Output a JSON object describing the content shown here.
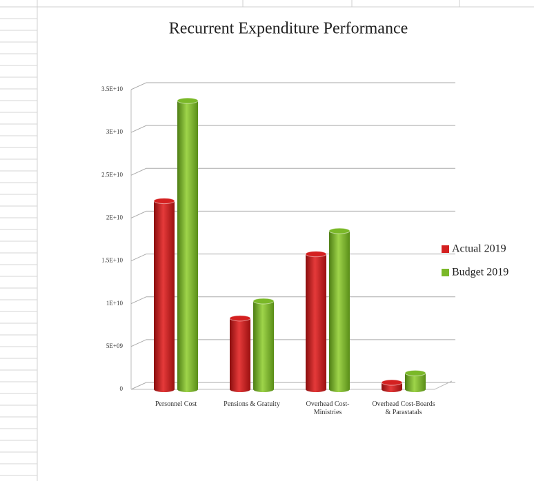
{
  "chart_data": {
    "type": "bar",
    "title": "Recurrent Expenditure Performance",
    "categories": [
      "Personnel Cost",
      "Pensions & Gratuity",
      "Overhead Cost-Ministries",
      "Overhead Cost-Boards & Parastatals"
    ],
    "series": [
      {
        "name": "Actual 2019",
        "color": "#d42020",
        "values": [
          22000000000,
          8300000000,
          15800000000,
          800000000
        ]
      },
      {
        "name": "Budget 2019",
        "color": "#7ab828",
        "values": [
          33700000000,
          10300000000,
          18500000000,
          1900000000
        ]
      }
    ],
    "ylim": [
      0,
      35000000000
    ],
    "yticks": [
      0,
      {
        "value": 5000000000,
        "label": "5E+09"
      },
      {
        "value": 10000000000,
        "label": "1E+10"
      },
      {
        "value": 15000000000,
        "label": "1.5E+10"
      },
      {
        "value": 20000000000,
        "label": "2E+10"
      },
      {
        "value": 25000000000,
        "label": "2.5E+10"
      },
      {
        "value": 30000000000,
        "label": "3E+10"
      },
      {
        "value": 35000000000,
        "label": "3.5E+10"
      }
    ],
    "grid": true,
    "legend": "right"
  }
}
